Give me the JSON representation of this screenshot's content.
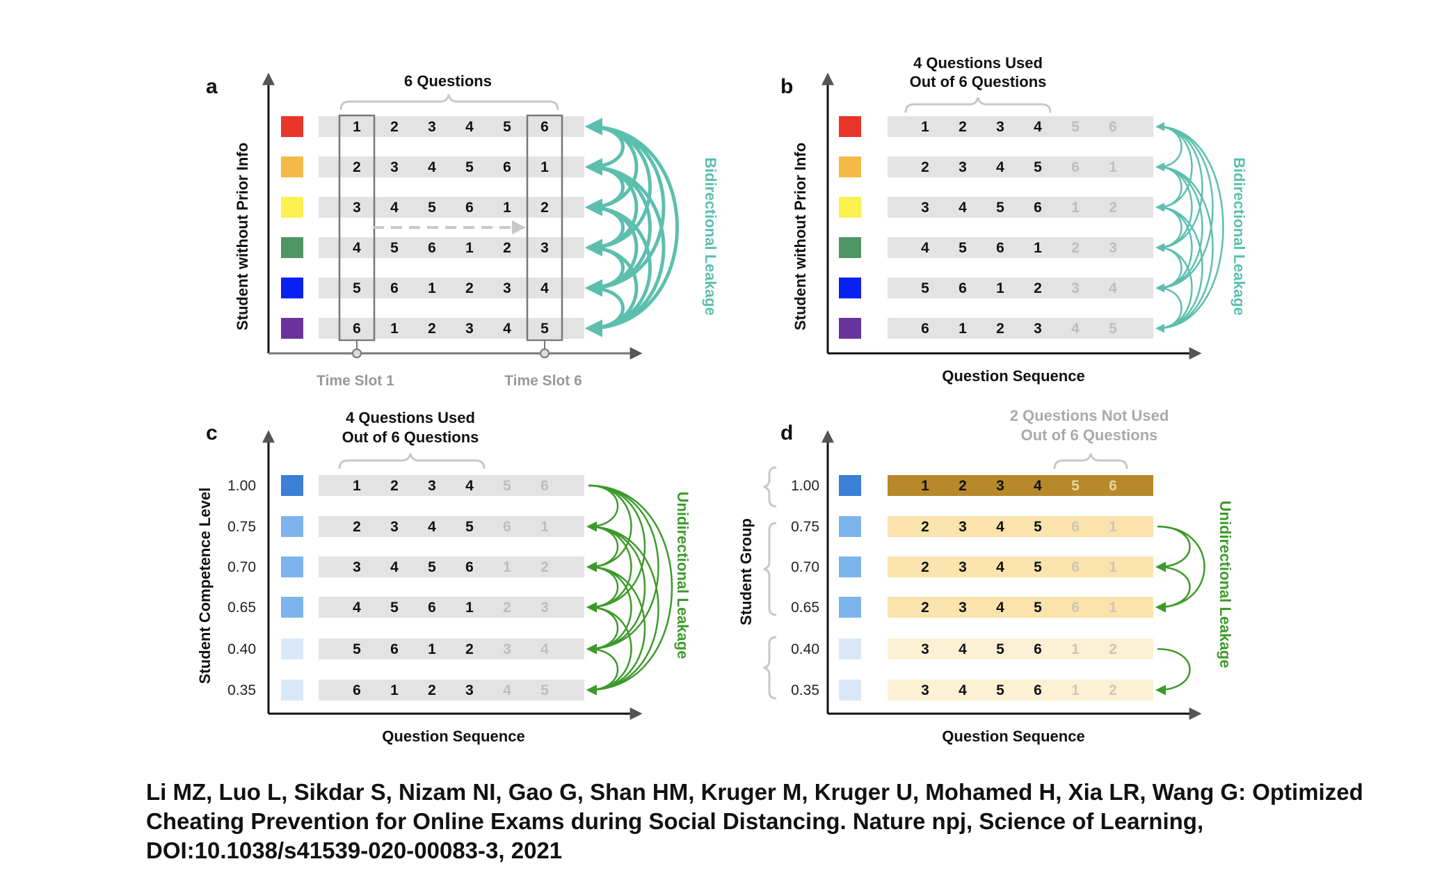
{
  "panels": {
    "a": {
      "letter": "a",
      "y_axis_title": "Student without Prior Info",
      "bracket_title": "6 Questions",
      "time_slot_first": "Time Slot 1",
      "time_slot_last": "Time Slot 6",
      "side_label": "Bidirectional Leakage",
      "rows": [
        [
          "1",
          "2",
          "3",
          "4",
          "5",
          "6"
        ],
        [
          "2",
          "3",
          "4",
          "5",
          "6",
          "1"
        ],
        [
          "3",
          "4",
          "5",
          "6",
          "1",
          "2"
        ],
        [
          "4",
          "5",
          "6",
          "1",
          "2",
          "3"
        ],
        [
          "5",
          "6",
          "1",
          "2",
          "3",
          "4"
        ],
        [
          "6",
          "1",
          "2",
          "3",
          "4",
          "5"
        ]
      ],
      "colors": [
        "#e8352a",
        "#f3bb45",
        "#fbf150",
        "#4e9563",
        "#0a21f2",
        "#68339a"
      ]
    },
    "b": {
      "letter": "b",
      "y_axis_title": "Student without Prior Info",
      "x_axis_title": "Question Sequence",
      "bracket_title_line1": "4 Questions Used",
      "bracket_title_line2": "Out of 6 Questions",
      "side_label": "Bidirectional Leakage",
      "rows": [
        [
          "1",
          "2",
          "3",
          "4",
          "5",
          "6"
        ],
        [
          "2",
          "3",
          "4",
          "5",
          "6",
          "1"
        ],
        [
          "3",
          "4",
          "5",
          "6",
          "1",
          "2"
        ],
        [
          "4",
          "5",
          "6",
          "1",
          "2",
          "3"
        ],
        [
          "5",
          "6",
          "1",
          "2",
          "3",
          "4"
        ],
        [
          "6",
          "1",
          "2",
          "3",
          "4",
          "5"
        ]
      ],
      "used_count": 4,
      "colors": [
        "#e8352a",
        "#f3bb45",
        "#fbf150",
        "#4e9563",
        "#0a21f2",
        "#68339a"
      ]
    },
    "c": {
      "letter": "c",
      "y_axis_title": "Student Competence Level",
      "x_axis_title": "Question Sequence",
      "bracket_title_line1": "4 Questions Used",
      "bracket_title_line2": "Out of 6 Questions",
      "side_label": "Unidirectional Leakage",
      "levels": [
        "1.00",
        "0.75",
        "0.70",
        "0.65",
        "0.40",
        "0.35"
      ],
      "rows": [
        [
          "1",
          "2",
          "3",
          "4",
          "5",
          "6"
        ],
        [
          "2",
          "3",
          "4",
          "5",
          "6",
          "1"
        ],
        [
          "3",
          "4",
          "5",
          "6",
          "1",
          "2"
        ],
        [
          "4",
          "5",
          "6",
          "1",
          "2",
          "3"
        ],
        [
          "5",
          "6",
          "1",
          "2",
          "3",
          "4"
        ],
        [
          "6",
          "1",
          "2",
          "3",
          "4",
          "5"
        ]
      ],
      "used_count": 4,
      "colors": [
        "#3b7fd6",
        "#7eb4ee",
        "#7eb4ee",
        "#7eb4ee",
        "#d9e8f8",
        "#d9e8f8"
      ]
    },
    "d": {
      "letter": "d",
      "y_axis_title": "Student Group",
      "x_axis_title": "Question Sequence",
      "bracket_title_line1": "2 Questions Not Used",
      "bracket_title_line2": "Out of 6 Questions",
      "side_label": "Unidirectional Leakage",
      "levels": [
        "1.00",
        "0.75",
        "0.70",
        "0.65",
        "0.40",
        "0.35"
      ],
      "rows": [
        [
          "1",
          "2",
          "3",
          "4",
          "5",
          "6"
        ],
        [
          "2",
          "3",
          "4",
          "5",
          "6",
          "1"
        ],
        [
          "2",
          "3",
          "4",
          "5",
          "6",
          "1"
        ],
        [
          "2",
          "3",
          "4",
          "5",
          "6",
          "1"
        ],
        [
          "3",
          "4",
          "5",
          "6",
          "1",
          "2"
        ],
        [
          "3",
          "4",
          "5",
          "6",
          "1",
          "2"
        ]
      ],
      "used_count": 4,
      "colors": [
        "#3b7fd6",
        "#7eb4ee",
        "#7eb4ee",
        "#7eb4ee",
        "#d9e8f8",
        "#d9e8f8"
      ],
      "bar_colors": [
        "#b8892a",
        "#fbe3ad",
        "#fbe3ad",
        "#fbe3ad",
        "#fdf1d5",
        "#fdf1d5"
      ]
    }
  },
  "style": {
    "teal": "#5cbfae",
    "green": "#3d9a2a",
    "bar_grey": "#e3e3e3",
    "faded_number": "#bdbdbd",
    "axis": "#111111"
  },
  "citation": "Li MZ, Luo L, Sikdar S, Nizam NI, Gao G, Shan HM, Kruger M, Kruger U, Mohamed H, Xia LR, Wang G: Optimized Cheating Prevention for Online Exams during Social Distancing. Nature npj, Science of Learning, DOI:10.1038/s41539-020-00083-3, 2021"
}
